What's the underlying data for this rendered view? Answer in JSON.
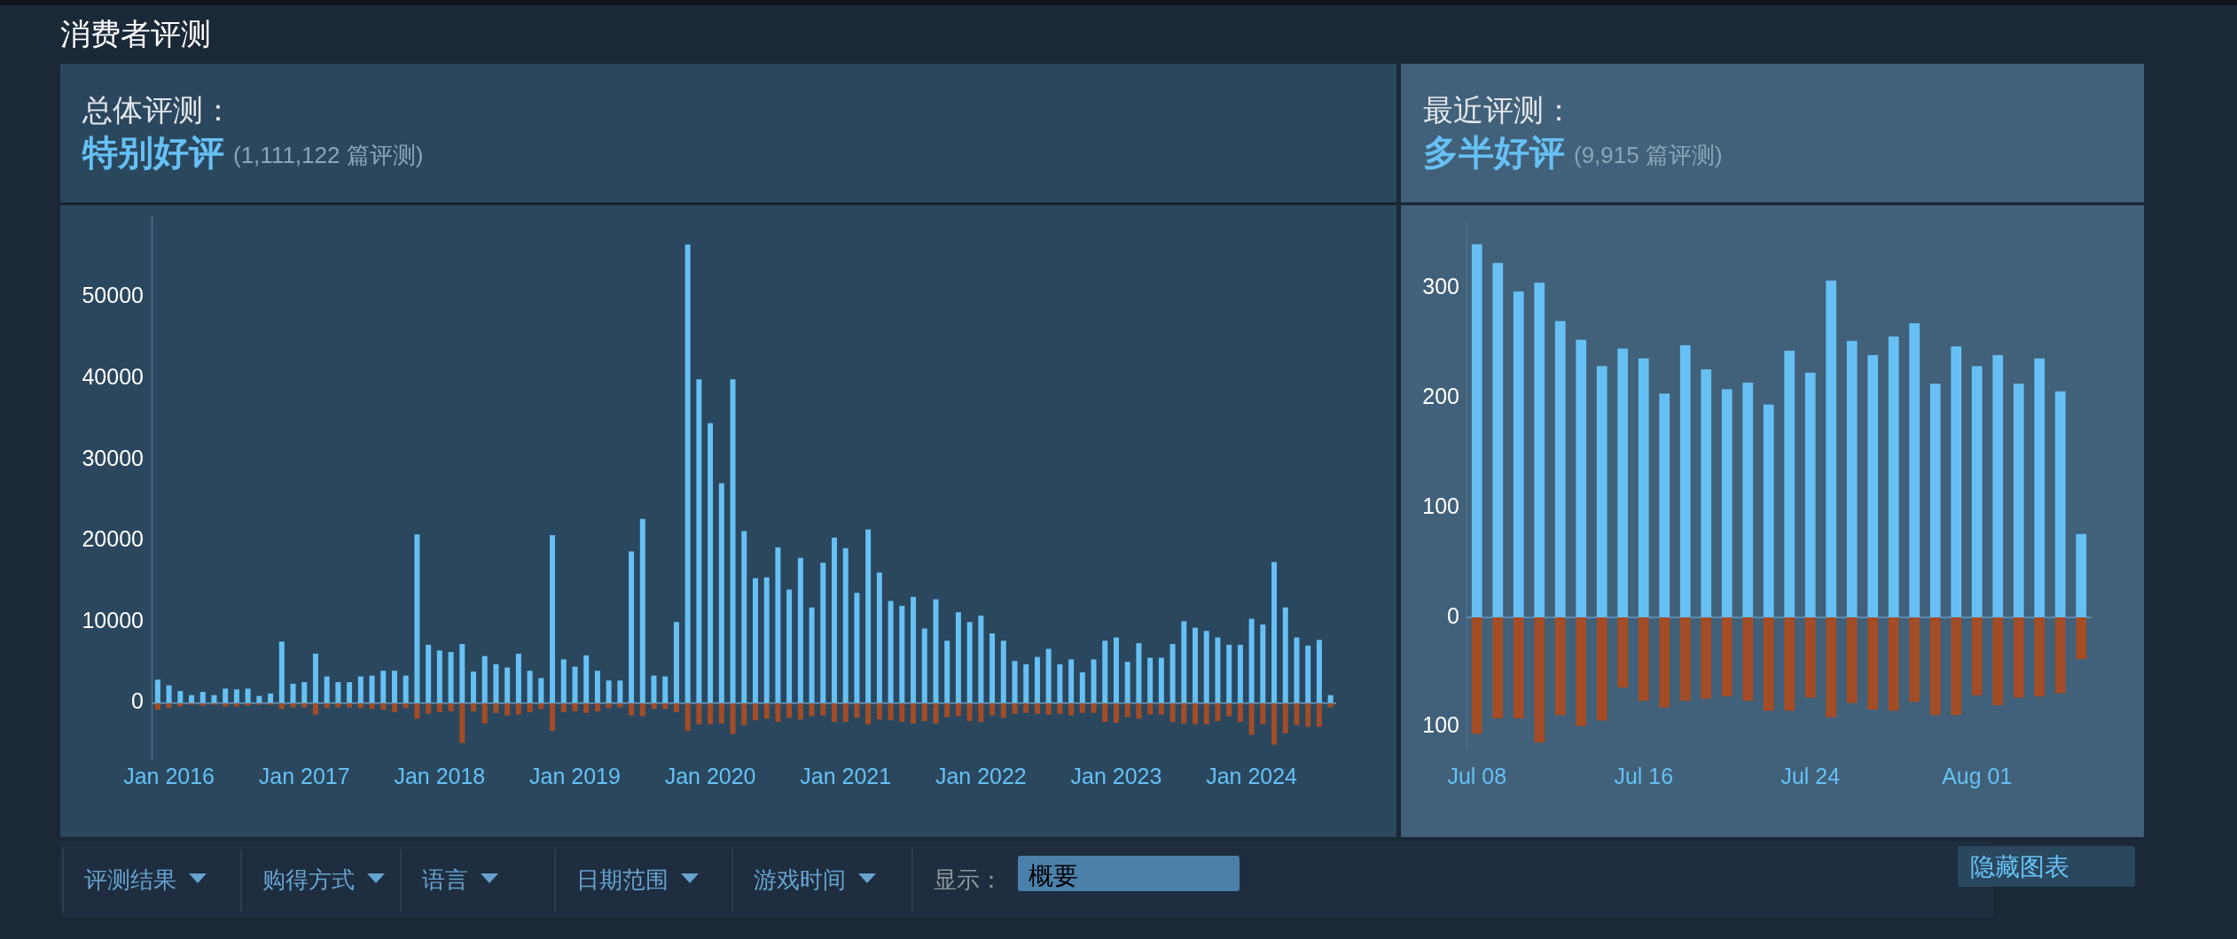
{
  "chart_data": [
    {
      "type": "other",
      "title": "消费者评测",
      "annotations": [
        "评测结果",
        "购得方式",
        "语言",
        "日期范围",
        "游戏时间",
        "显示：",
        "概要",
        "隐藏图表"
      ]
    },
    {
      "type": "bar",
      "title": "总体评测：",
      "subtitle": "特别好评",
      "annotations": [
        "(1,111,122 篇评测)"
      ],
      "stacked": true,
      "ylim": [
        -7000,
        60000
      ],
      "categories": [
        null,
        "Jan 2016",
        null,
        null,
        null,
        null,
        null,
        null,
        null,
        null,
        null,
        null,
        null,
        "Jan 2017",
        null,
        null,
        null,
        null,
        null,
        null,
        null,
        null,
        null,
        null,
        null,
        "Jan 2018",
        null,
        null,
        null,
        null,
        null,
        null,
        null,
        null,
        null,
        null,
        null,
        "Jan 2019",
        null,
        null,
        null,
        null,
        null,
        null,
        null,
        null,
        null,
        null,
        null,
        "Jan 2020",
        null,
        null,
        null,
        null,
        null,
        null,
        null,
        null,
        null,
        null,
        null,
        "Jan 2021",
        null,
        null,
        null,
        null,
        null,
        null,
        null,
        null,
        null,
        null,
        null,
        "Jan 2022",
        null,
        null,
        null,
        null,
        null,
        null,
        null,
        null,
        null,
        null,
        null,
        "Jan 2023",
        null,
        null,
        null,
        null,
        null,
        null,
        null,
        null,
        null,
        null,
        null,
        "Jan 2024",
        null,
        null,
        null,
        null,
        null,
        null,
        null
      ],
      "series": [
        {
          "color": "#66c0f4",
          "values": [
            2900,
            2200,
            1500,
            1000,
            1400,
            1000,
            1800,
            1700,
            1800,
            900,
            1200,
            7600,
            2400,
            2600,
            6100,
            3300,
            2600,
            2600,
            3300,
            3400,
            4000,
            4000,
            3400,
            20800,
            7200,
            6500,
            6300,
            7300,
            3900,
            5800,
            4800,
            4400,
            6100,
            4000,
            3100,
            20700,
            5400,
            4500,
            5900,
            4000,
            2800,
            2800,
            18700,
            22700,
            3400,
            3300,
            10000,
            56500,
            39900,
            34500,
            27100,
            39900,
            21200,
            15400,
            15500,
            19200,
            14000,
            17900,
            11800,
            17300,
            20400,
            19100,
            13600,
            21400,
            16100,
            12600,
            12000,
            13100,
            9200,
            12800,
            7700,
            11200,
            10000,
            10800,
            8600,
            7700,
            5200,
            4800,
            5700,
            6700,
            4800,
            5400,
            3800,
            5400,
            7700,
            8100,
            5100,
            7400,
            5600,
            5600,
            7300,
            10100,
            9300,
            8900,
            8100,
            7200,
            7200,
            10400,
            9700,
            17400,
            11800,
            8100,
            7100,
            7800,
            1000
          ]
        },
        {
          "color": "#a34c25",
          "values": [
            -800,
            -600,
            -400,
            -200,
            -300,
            -200,
            -400,
            -400,
            -300,
            -200,
            -200,
            -700,
            -500,
            -500,
            -1400,
            -600,
            -500,
            -500,
            -600,
            -700,
            -800,
            -1100,
            -600,
            -1900,
            -1300,
            -1100,
            -1000,
            -4900,
            -1000,
            -2500,
            -1200,
            -1500,
            -1400,
            -1100,
            -700,
            -3400,
            -1100,
            -1000,
            -1200,
            -1000,
            -600,
            -500,
            -1500,
            -1600,
            -700,
            -700,
            -1100,
            -3400,
            -2600,
            -2600,
            -2500,
            -3800,
            -2700,
            -2100,
            -1900,
            -2300,
            -1800,
            -2000,
            -1600,
            -1500,
            -2300,
            -2300,
            -1800,
            -2600,
            -2000,
            -2100,
            -2300,
            -2500,
            -2200,
            -2500,
            -1700,
            -1600,
            -2200,
            -2300,
            -1500,
            -1800,
            -1300,
            -1200,
            -1300,
            -1400,
            -1300,
            -1500,
            -1200,
            -1200,
            -2300,
            -2400,
            -1700,
            -1900,
            -1400,
            -1400,
            -2300,
            -2500,
            -2600,
            -2600,
            -2200,
            -1600,
            -2300,
            -3900,
            -2600,
            -5100,
            -3700,
            -2700,
            -2900,
            -2900,
            -500
          ]
        }
      ],
      "yticks": [
        0,
        10000,
        20000,
        30000,
        40000,
        50000
      ],
      "ref_lines": [
        {
          "axis": "y",
          "value": 0,
          "color": "#5b8bb0"
        }
      ]
    },
    {
      "type": "bar",
      "title": "最近评测：",
      "subtitle": "多半好评",
      "annotations": [
        "(9,915 篇评测)"
      ],
      "stacked": true,
      "ylim": [
        -120,
        360
      ],
      "categories": [
        "Jul 08",
        null,
        null,
        null,
        null,
        null,
        null,
        null,
        "Jul 16",
        null,
        null,
        null,
        null,
        null,
        null,
        null,
        "Jul 24",
        null,
        null,
        null,
        null,
        null,
        null,
        null,
        "Aug 01",
        null,
        null,
        null,
        null,
        null
      ],
      "series": [
        {
          "color": "#66c0f4",
          "values": [
            340,
            323,
            297,
            305,
            270,
            253,
            229,
            245,
            236,
            204,
            248,
            226,
            208,
            214,
            194,
            243,
            223,
            307,
            252,
            239,
            256,
            268,
            213,
            247,
            229,
            239,
            213,
            236,
            206,
            76
          ]
        },
        {
          "color": "#a34c25",
          "values": [
            -106,
            -92,
            -92,
            -114,
            -89,
            -99,
            -94,
            -64,
            -76,
            -82,
            -76,
            -74,
            -72,
            -76,
            -85,
            -85,
            -73,
            -91,
            -78,
            -84,
            -85,
            -77,
            -89,
            -89,
            -71,
            -80,
            -73,
            -72,
            -69,
            -38
          ]
        }
      ],
      "yticks": [
        {
          "value": -100,
          "label": "100"
        },
        0,
        100,
        200,
        300
      ],
      "ref_lines": [
        {
          "axis": "y",
          "value": 0,
          "color": "#5b8bb0"
        }
      ]
    }
  ]
}
